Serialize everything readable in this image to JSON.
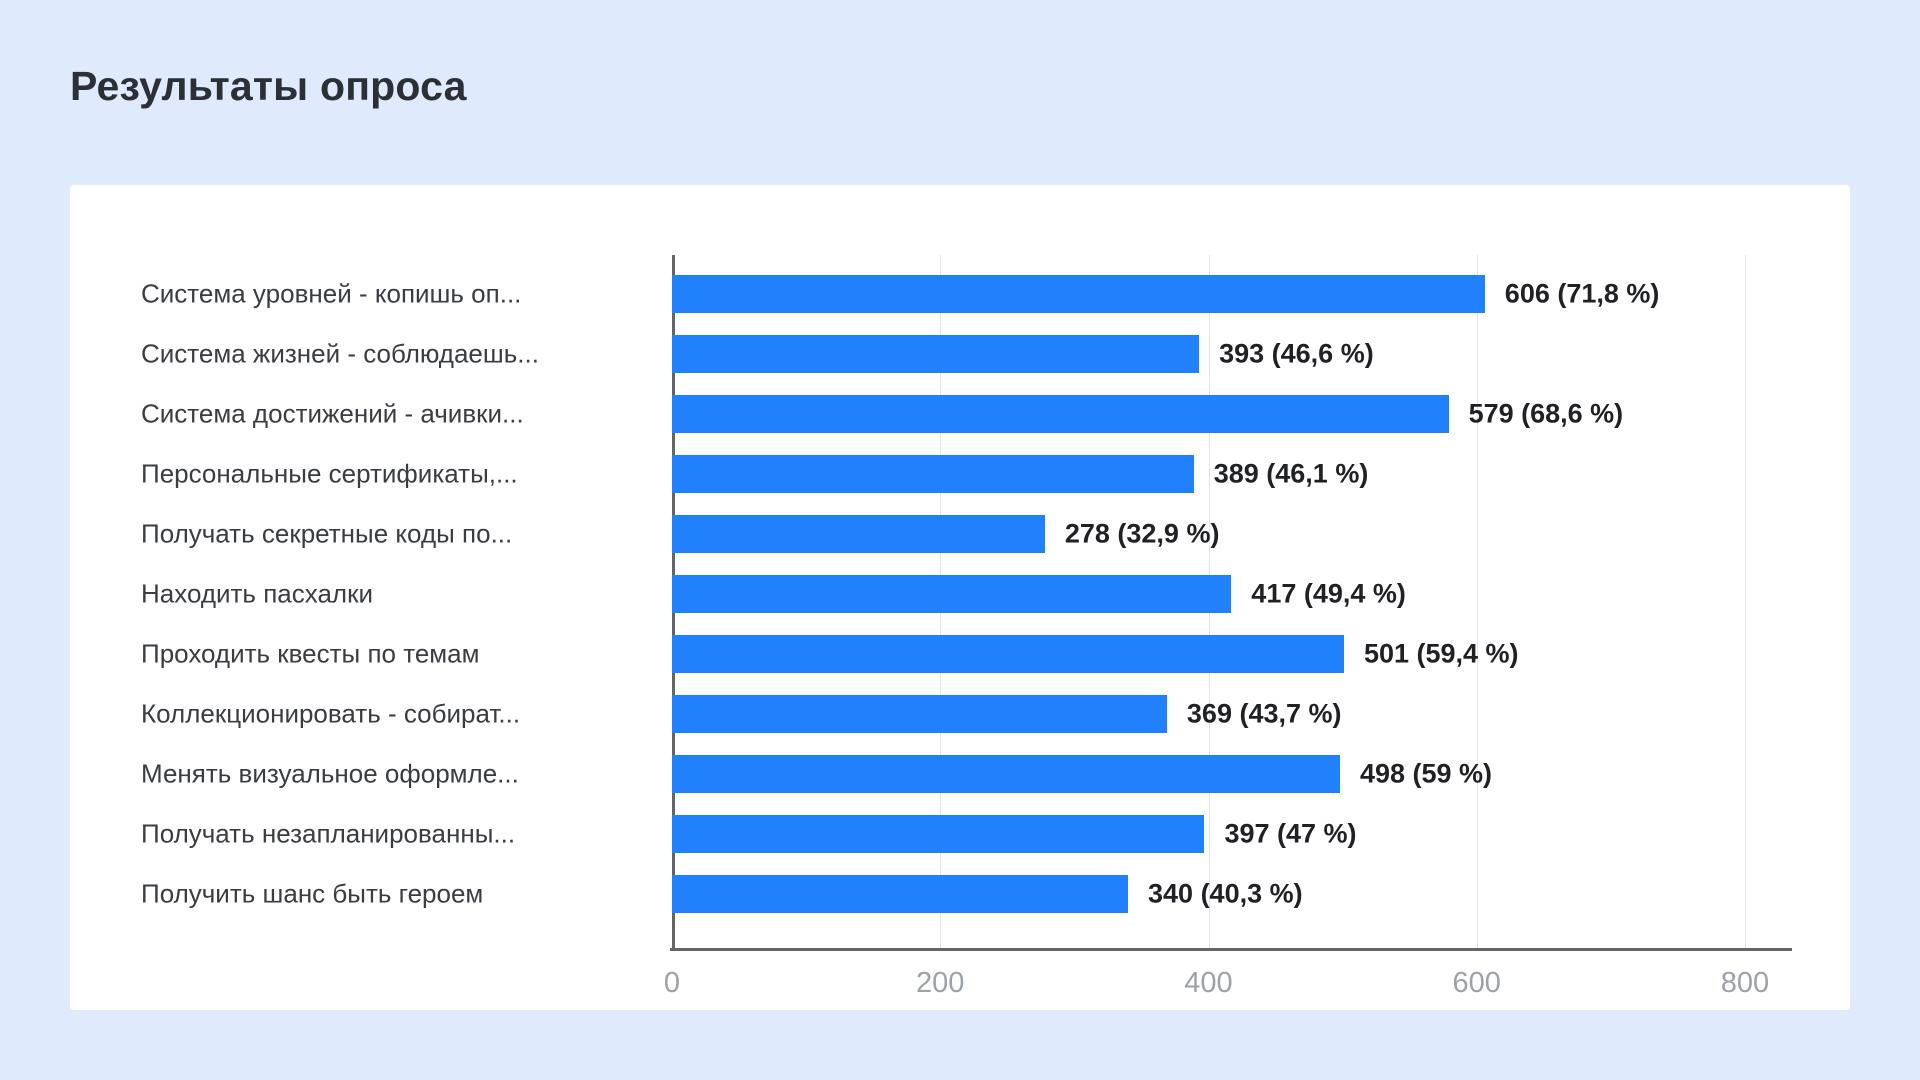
{
  "page": {
    "title": "Результаты опроса"
  },
  "chart_data": {
    "type": "bar",
    "orientation": "horizontal",
    "title": "Результаты опроса",
    "categories": [
      "Система уровней - копишь оп...",
      "Система жизней - соблюдаешь...",
      "Система достижений - ачивки...",
      "Персональные сертификаты,...",
      "Получать секретные коды по...",
      "Находить пасхалки",
      "Проходить квесты по темам",
      "Коллекционировать - собират...",
      "Менять визуальное оформле...",
      "Получать незапланированны...",
      "Получить шанс быть героем"
    ],
    "values": [
      606,
      393,
      579,
      389,
      278,
      417,
      501,
      369,
      498,
      397,
      340
    ],
    "value_labels": [
      "606 (71,8 %)",
      "393 (46,6 %)",
      "579 (68,6 %)",
      "389 (46,1 %)",
      "278 (32,9 %)",
      "417 (49,4 %)",
      "501 (59,4 %)",
      "369 (43,7 %)",
      "498 (59 %)",
      "397 (47 %)",
      "340 (40,3 %)"
    ],
    "xticks": [
      0,
      200,
      400,
      600,
      800
    ],
    "xlim": [
      0,
      800
    ],
    "xlabel": "",
    "ylabel": "",
    "grid": true,
    "legend": "none",
    "colors": {
      "bar": "#2180fb",
      "page_background": "#dfeafc",
      "card_background": "#ffffff",
      "axis_line": "#636567",
      "gridline": "#e1e3e6",
      "tick_text": "#9da2a8",
      "label_text": "#3a3d42",
      "value_text": "#1f2125",
      "title_text": "#2b2f36"
    }
  }
}
